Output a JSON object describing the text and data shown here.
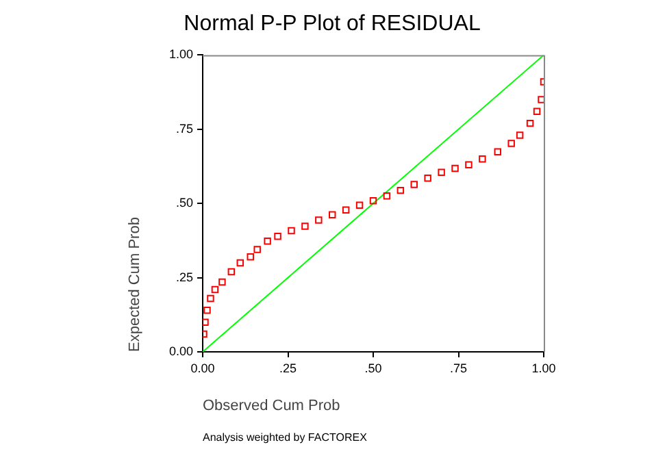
{
  "chart_data": {
    "type": "scatter",
    "title": "Normal P-P Plot of RESIDUAL",
    "xlabel": "Observed Cum Prob",
    "ylabel": "Expected Cum Prob",
    "annotations": [
      "Analysis weighted by FACTOREX"
    ],
    "xlim": [
      0,
      1
    ],
    "ylim": [
      0,
      1
    ],
    "xticks": [
      {
        "value": 0,
        "label": "0.00"
      },
      {
        "value": 0.25,
        "label": ".25"
      },
      {
        "value": 0.5,
        "label": ".50"
      },
      {
        "value": 0.75,
        "label": ".75"
      },
      {
        "value": 1,
        "label": "1.00"
      }
    ],
    "yticks": [
      {
        "value": 0,
        "label": "0.00"
      },
      {
        "value": 0.25,
        "label": ".25"
      },
      {
        "value": 0.5,
        "label": ".50"
      },
      {
        "value": 0.75,
        "label": ".75"
      },
      {
        "value": 1,
        "label": "1.00"
      }
    ],
    "grid": false,
    "legend": false,
    "series": [
      {
        "color": "#ff0000",
        "marker": "square",
        "x": [
          0.003,
          0.007,
          0.013,
          0.023,
          0.036,
          0.057,
          0.084,
          0.11,
          0.14,
          0.16,
          0.19,
          0.22,
          0.26,
          0.3,
          0.34,
          0.38,
          0.42,
          0.46,
          0.5,
          0.54,
          0.58,
          0.62,
          0.66,
          0.7,
          0.74,
          0.78,
          0.82,
          0.865,
          0.905,
          0.93,
          0.96,
          0.98,
          0.993,
          1.0
        ],
        "values": [
          0.06,
          0.1,
          0.14,
          0.18,
          0.21,
          0.235,
          0.27,
          0.3,
          0.32,
          0.345,
          0.373,
          0.389,
          0.408,
          0.423,
          0.444,
          0.462,
          0.478,
          0.494,
          0.509,
          0.525,
          0.544,
          0.564,
          0.585,
          0.605,
          0.618,
          0.63,
          0.65,
          0.674,
          0.702,
          0.73,
          0.77,
          0.81,
          0.85,
          0.91
        ]
      },
      {
        "type": "line",
        "color": "#00ff00",
        "line_style": "solid",
        "marker": "none",
        "x": [
          0,
          1
        ],
        "values": [
          0,
          1
        ]
      }
    ]
  }
}
